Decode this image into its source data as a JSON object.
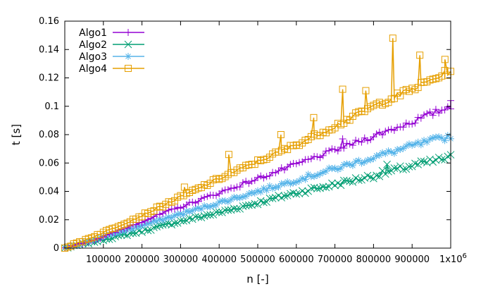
{
  "chart_data": {
    "type": "line",
    "title": "",
    "xlabel": "n [-]",
    "ylabel": "t [s]",
    "xlim": [
      0,
      1000000
    ],
    "ylim": [
      0,
      0.16
    ],
    "x_ticks": [
      {
        "value": 100000,
        "label": "100000"
      },
      {
        "value": 200000,
        "label": "200000"
      },
      {
        "value": 300000,
        "label": "300000"
      },
      {
        "value": 400000,
        "label": "400000"
      },
      {
        "value": 500000,
        "label": "500000"
      },
      {
        "value": 600000,
        "label": "600000"
      },
      {
        "value": 700000,
        "label": "700000"
      },
      {
        "value": 800000,
        "label": "800000"
      },
      {
        "value": 900000,
        "label": "900000"
      }
    ],
    "x_end_label": {
      "value": 1000000,
      "base": "1x10",
      "exp": "6"
    },
    "y_ticks": [
      {
        "value": 0,
        "label": "0"
      },
      {
        "value": 0.02,
        "label": "0.02"
      },
      {
        "value": 0.04,
        "label": "0.04"
      },
      {
        "value": 0.06,
        "label": "0.06"
      },
      {
        "value": 0.08,
        "label": "0.08"
      },
      {
        "value": 0.1,
        "label": "0.1"
      },
      {
        "value": 0.12,
        "label": "0.12"
      },
      {
        "value": 0.14,
        "label": "0.14"
      },
      {
        "value": 0.16,
        "label": "0.16"
      }
    ],
    "grid": false,
    "legend_position": "top-left",
    "series": [
      {
        "name": "Algo1",
        "marker": "plus",
        "color": "#9400d3",
        "x": [
          0,
          100000,
          200000,
          300000,
          400000,
          500000,
          600000,
          700000,
          800000,
          900000,
          1000000
        ],
        "y": [
          0,
          0.008,
          0.019,
          0.029,
          0.039,
          0.049,
          0.059,
          0.069,
          0.079,
          0.089,
          0.1
        ],
        "outliers": [
          {
            "x": 1000000,
            "y": 0.104
          },
          {
            "x": 720000,
            "y": 0.077
          }
        ]
      },
      {
        "name": "Algo2",
        "marker": "cross",
        "color": "#009e73",
        "x": [
          0,
          100000,
          200000,
          300000,
          400000,
          500000,
          600000,
          700000,
          800000,
          900000,
          1000000
        ],
        "y": [
          0,
          0.006,
          0.012,
          0.019,
          0.025,
          0.032,
          0.039,
          0.045,
          0.051,
          0.058,
          0.064
        ],
        "outliers": [
          {
            "x": 835000,
            "y": 0.059
          }
        ]
      },
      {
        "name": "Algo3",
        "marker": "star",
        "color": "#56b4e9",
        "x": [
          0,
          100000,
          200000,
          300000,
          400000,
          500000,
          600000,
          700000,
          800000,
          900000,
          1000000
        ],
        "y": [
          0,
          0.008,
          0.016,
          0.024,
          0.032,
          0.04,
          0.048,
          0.056,
          0.064,
          0.072,
          0.079
        ],
        "outliers": []
      },
      {
        "name": "Algo4",
        "marker": "box",
        "color": "#e69f00",
        "x": [
          0,
          100000,
          200000,
          300000,
          400000,
          500000,
          600000,
          700000,
          800000,
          900000,
          1000000
        ],
        "y": [
          0,
          0.011,
          0.023,
          0.036,
          0.049,
          0.061,
          0.073,
          0.086,
          0.1,
          0.112,
          0.125
        ],
        "outliers": [
          {
            "x": 310000,
            "y": 0.043
          },
          {
            "x": 425000,
            "y": 0.066
          },
          {
            "x": 560000,
            "y": 0.08
          },
          {
            "x": 645000,
            "y": 0.092
          },
          {
            "x": 720000,
            "y": 0.112
          },
          {
            "x": 780000,
            "y": 0.111
          },
          {
            "x": 850000,
            "y": 0.148
          },
          {
            "x": 920000,
            "y": 0.136
          },
          {
            "x": 985000,
            "y": 0.133
          }
        ]
      }
    ]
  }
}
